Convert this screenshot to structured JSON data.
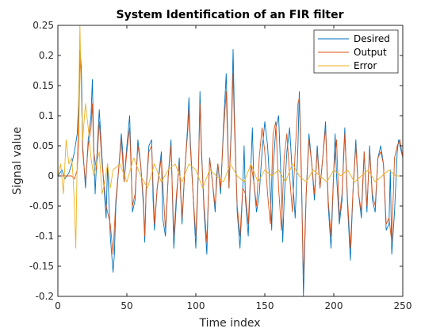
{
  "chart_data": {
    "type": "line",
    "title": "System Identification of an FIR filter",
    "xlabel": "Time index",
    "ylabel": "Signal value",
    "xlim": [
      0,
      250
    ],
    "ylim": [
      -0.2,
      0.25
    ],
    "xticks": [
      0,
      50,
      100,
      150,
      200,
      250
    ],
    "yticks": [
      -0.2,
      -0.15,
      -0.1,
      -0.05,
      0,
      0.05,
      0.1,
      0.15,
      0.2,
      0.25
    ],
    "xtick_labels": [
      "0",
      "50",
      "100",
      "150",
      "200",
      "250"
    ],
    "ytick_labels": [
      "-0.2",
      "-0.15",
      "-0.1",
      "-0.05",
      "0",
      "0.05",
      "0.1",
      "0.15",
      "0.2",
      "0.25"
    ],
    "grid": false,
    "legend_position": "top-right",
    "series": [
      {
        "name": "Desired",
        "color": "#0072BD",
        "x": [
          0,
          3,
          5,
          8,
          10,
          12,
          14,
          15,
          16,
          17,
          18,
          20,
          22,
          24,
          25,
          26,
          27,
          28,
          30,
          32,
          34,
          35,
          36,
          38,
          40,
          41,
          42,
          44,
          46,
          47,
          48,
          50,
          52,
          53,
          54,
          56,
          58,
          60,
          62,
          63,
          64,
          66,
          68,
          69,
          70,
          72,
          74,
          75,
          76,
          78,
          80,
          82,
          83,
          84,
          86,
          88,
          89,
          90,
          92,
          94,
          95,
          96,
          98,
          100,
          102,
          103,
          104,
          106,
          108,
          109,
          110,
          112,
          114,
          115,
          116,
          118,
          120,
          122,
          123,
          124,
          126,
          127,
          128,
          130,
          132,
          134,
          135,
          136,
          138,
          140,
          141,
          142,
          144,
          146,
          148,
          150,
          152,
          154,
          155,
          156,
          158,
          160,
          162,
          163,
          164,
          166,
          168,
          170,
          172,
          174,
          175,
          176,
          177,
          178,
          180,
          182,
          184,
          186,
          188,
          190,
          192,
          194,
          196,
          198,
          200,
          201,
          202,
          204,
          206,
          207,
          208,
          210,
          212,
          214,
          216,
          218,
          220,
          222,
          224,
          226,
          228,
          230,
          232,
          234,
          236,
          238,
          240,
          241,
          242,
          244,
          246,
          247,
          248,
          250
        ],
        "values": [
          0,
          0.01,
          -0.005,
          0.005,
          0.02,
          0.04,
          0.07,
          0.12,
          0.21,
          0.18,
          0.05,
          -0.02,
          0.06,
          0.1,
          0.16,
          0.05,
          -0.03,
          0.02,
          0.11,
          0.03,
          -0.04,
          -0.07,
          0.02,
          -0.1,
          -0.16,
          -0.13,
          -0.05,
          0.01,
          0.07,
          0.04,
          -0.01,
          0.05,
          0.1,
          0.03,
          -0.06,
          -0.04,
          0.06,
          0.02,
          -0.05,
          -0.11,
          -0.02,
          0.05,
          0.06,
          -0.04,
          -0.09,
          -0.02,
          0.02,
          0.04,
          -0.07,
          -0.1,
          0.0,
          0.06,
          -0.03,
          -0.12,
          -0.04,
          0.03,
          -0.03,
          -0.08,
          0.01,
          0.08,
          0.13,
          0.06,
          -0.03,
          -0.12,
          0.02,
          0.14,
          0.05,
          -0.06,
          -0.13,
          -0.04,
          0.03,
          -0.01,
          -0.06,
          0.0,
          0.02,
          -0.03,
          0.08,
          0.17,
          0.08,
          -0.02,
          0.1,
          0.21,
          0.1,
          -0.06,
          -0.12,
          -0.02,
          0.05,
          -0.04,
          -0.1,
          0.02,
          0.08,
          -0.01,
          -0.06,
          -0.03,
          0.04,
          0.09,
          0.05,
          -0.03,
          -0.09,
          0.01,
          0.08,
          0.1,
          -0.02,
          -0.11,
          -0.04,
          0.04,
          0.08,
          0.0,
          -0.07,
          0.05,
          0.14,
          0.06,
          -0.05,
          -0.2,
          -0.03,
          0.07,
          0.02,
          -0.04,
          0.05,
          -0.02,
          0.03,
          0.09,
          -0.05,
          -0.12,
          0.01,
          0.07,
          0.0,
          -0.08,
          -0.04,
          0.03,
          0.08,
          -0.05,
          -0.14,
          -0.02,
          0.06,
          -0.03,
          -0.07,
          0.04,
          -0.06,
          0.05,
          -0.04,
          -0.06,
          0.03,
          0.05,
          0.02,
          -0.09,
          -0.08,
          0.01,
          -0.13,
          -0.06,
          0.04,
          0.06,
          0.05,
          0.03
        ]
      },
      {
        "name": "Output",
        "color": "#D95319",
        "x": [
          0,
          5,
          10,
          12,
          14,
          15,
          16,
          17,
          18,
          20,
          22,
          24,
          25,
          26,
          28,
          30,
          32,
          35,
          38,
          40,
          42,
          44,
          46,
          48,
          50,
          52,
          54,
          56,
          58,
          60,
          62,
          63,
          64,
          66,
          68,
          70,
          72,
          75,
          78,
          80,
          82,
          84,
          86,
          88,
          90,
          92,
          94,
          95,
          96,
          98,
          100,
          102,
          103,
          104,
          106,
          108,
          110,
          112,
          114,
          116,
          118,
          120,
          122,
          124,
          126,
          127,
          128,
          130,
          132,
          134,
          136,
          138,
          140,
          142,
          144,
          146,
          148,
          150,
          152,
          154,
          156,
          158,
          160,
          162,
          164,
          166,
          168,
          170,
          172,
          174,
          175,
          176,
          178,
          180,
          182,
          184,
          186,
          188,
          190,
          192,
          194,
          196,
          198,
          200,
          202,
          204,
          206,
          208,
          210,
          212,
          214,
          216,
          218,
          220,
          222,
          224,
          226,
          228,
          230,
          232,
          234,
          236,
          238,
          240,
          242,
          244,
          246,
          248,
          250
        ],
        "values": [
          0,
          0,
          0,
          -0.005,
          0.01,
          0.05,
          0.2,
          0.15,
          0.04,
          -0.01,
          0.05,
          0.08,
          0.12,
          0.04,
          0.01,
          0.09,
          0.02,
          -0.05,
          -0.08,
          -0.13,
          -0.04,
          0.01,
          0.06,
          -0.01,
          0.04,
          0.08,
          -0.05,
          -0.03,
          0.05,
          0.02,
          -0.04,
          -0.1,
          -0.02,
          0.04,
          0.05,
          -0.08,
          -0.02,
          0.03,
          -0.09,
          0.0,
          0.05,
          -0.1,
          -0.03,
          0.02,
          -0.07,
          0.01,
          0.07,
          0.11,
          0.05,
          -0.03,
          -0.1,
          0.02,
          0.12,
          0.04,
          -0.05,
          -0.11,
          0.03,
          -0.01,
          -0.05,
          0.02,
          -0.02,
          0.07,
          0.14,
          -0.02,
          0.09,
          0.17,
          0.08,
          -0.05,
          -0.1,
          -0.02,
          -0.03,
          -0.08,
          0.02,
          -0.01,
          -0.05,
          0.03,
          0.08,
          0.04,
          -0.03,
          -0.08,
          0.07,
          0.09,
          -0.02,
          -0.09,
          0.03,
          0.07,
          0.0,
          -0.06,
          0.04,
          0.12,
          0.13,
          0.05,
          -0.17,
          -0.03,
          0.06,
          0.02,
          -0.03,
          0.04,
          -0.02,
          0.03,
          0.08,
          -0.04,
          -0.1,
          0.01,
          0.06,
          -0.07,
          -0.03,
          0.07,
          -0.04,
          -0.12,
          -0.02,
          0.05,
          -0.03,
          -0.06,
          0.04,
          -0.05,
          0.04,
          -0.03,
          -0.05,
          0.03,
          0.04,
          0.02,
          -0.08,
          -0.07,
          -0.11,
          0.03,
          0.05,
          0.06,
          0.03
        ]
      },
      {
        "name": "Error",
        "color": "#EDB120",
        "x": [
          0,
          2,
          4,
          6,
          8,
          10,
          11,
          12,
          13,
          14,
          15,
          16,
          17,
          18,
          20,
          22,
          24,
          26,
          28,
          30,
          32,
          34,
          36,
          38,
          40,
          45,
          50,
          55,
          60,
          65,
          70,
          75,
          80,
          85,
          90,
          95,
          100,
          105,
          110,
          115,
          120,
          125,
          130,
          135,
          140,
          145,
          150,
          155,
          160,
          165,
          170,
          175,
          180,
          185,
          190,
          195,
          200,
          205,
          210,
          215,
          220,
          225,
          230,
          235,
          240,
          245,
          250
        ],
        "values": [
          0,
          0.02,
          -0.03,
          0.06,
          0.02,
          0.03,
          0.0,
          -0.05,
          -0.12,
          0.03,
          0.1,
          0.25,
          0.13,
          0.06,
          0.12,
          0.08,
          0.03,
          0.0,
          0.02,
          0.04,
          -0.03,
          -0.01,
          0.02,
          -0.02,
          0.01,
          0.02,
          -0.01,
          0.03,
          0.0,
          -0.02,
          0.02,
          -0.01,
          0.01,
          0.02,
          -0.01,
          0.02,
          0.01,
          -0.02,
          0.01,
          0.0,
          -0.01,
          0.02,
          0.0,
          -0.01,
          0.02,
          -0.01,
          0.01,
          0.0,
          0.01,
          -0.01,
          0.02,
          0.0,
          -0.01,
          0.01,
          0.0,
          -0.01,
          0.01,
          0.0,
          0.01,
          -0.01,
          0.0,
          0.01,
          -0.01,
          0.0,
          0.01,
          0.0,
          0.0
        ]
      }
    ]
  }
}
